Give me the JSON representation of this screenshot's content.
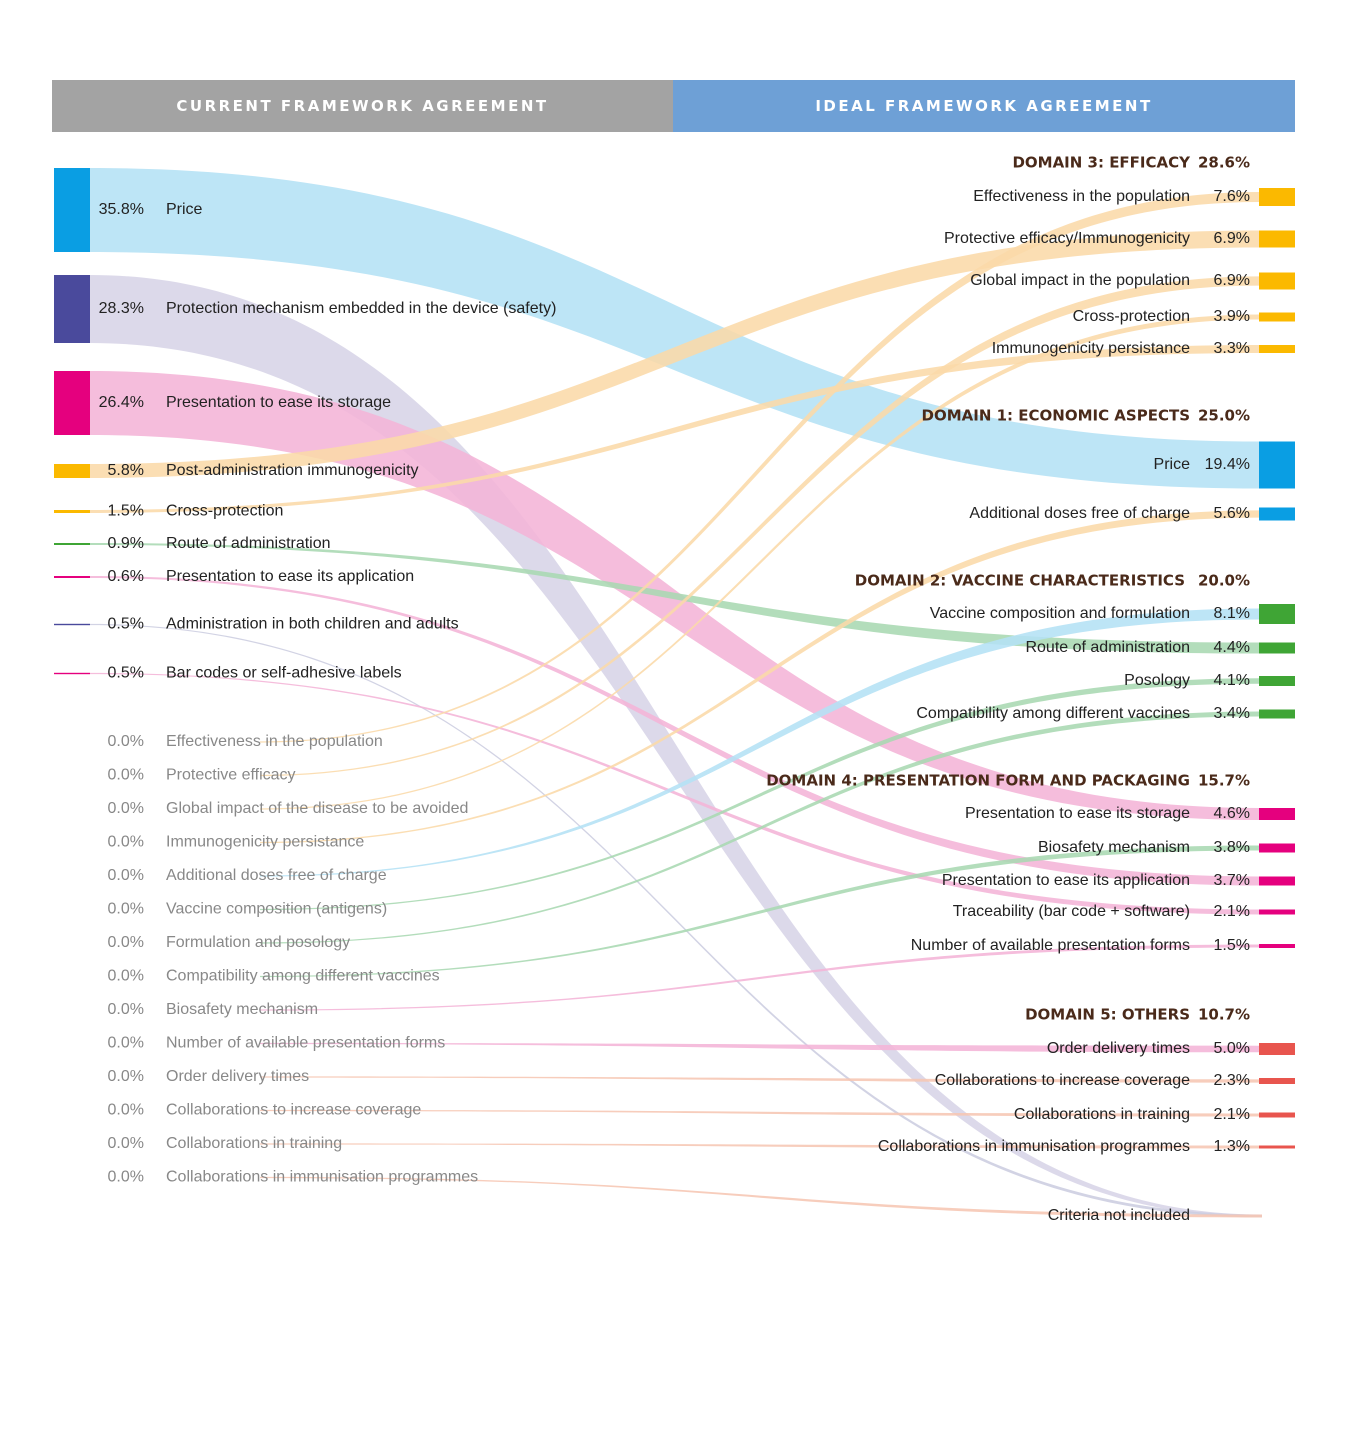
{
  "header": {
    "left": "CURRENT FRAMEWORK AGREEMENT",
    "right": "IDEAL FRAMEWORK AGREEMENT"
  },
  "colors": {
    "price": "#0a9ee3",
    "protection": "#4a4a9c",
    "storage": "#e5007e",
    "efficacy": "#fbb900",
    "characteristics": "#3fa535",
    "others": "#e8554e",
    "header_left": "#a3a3a3",
    "header_right": "#6ea0d6"
  },
  "chart_data": {
    "type": "sankey",
    "left_nodes": [
      {
        "id": "L-price",
        "pct": "35.8%",
        "label": "Price",
        "value": 35.8,
        "color": "#0a9ee3",
        "flow": "#b4e1f5"
      },
      {
        "id": "L-protection",
        "pct": "28.3%",
        "label": "Protection mechanism embedded in the device (safety)",
        "value": 28.3,
        "color": "#4a4a9c",
        "flow": "#d6d2e6"
      },
      {
        "id": "L-storage",
        "pct": "26.4%",
        "label": "Presentation to ease its storage",
        "value": 26.4,
        "color": "#e5007e",
        "flow": "#f4b4d7"
      },
      {
        "id": "L-postadmin",
        "pct": "5.8%",
        "label": "Post-administration immunogenicity",
        "value": 5.8,
        "color": "#fbb900",
        "flow": "#fad9a8"
      },
      {
        "id": "L-crossprot",
        "pct": "1.5%",
        "label": "Cross-protection",
        "value": 1.5,
        "color": "#fbb900",
        "flow": "#fad9a8"
      },
      {
        "id": "L-route",
        "pct": "0.9%",
        "label": "Route of administration",
        "value": 0.9,
        "color": "#3fa535",
        "flow": "#a8d8b2"
      },
      {
        "id": "L-application",
        "pct": "0.6%",
        "label": "Presentation to ease its application",
        "value": 0.6,
        "color": "#e5007e",
        "flow": "#f4b4d7"
      },
      {
        "id": "L-childadult",
        "pct": "0.5%",
        "label": "Administration in both children and adults",
        "value": 0.5,
        "color": "#4a4a9c",
        "flow": "#cccde0"
      },
      {
        "id": "L-barcodes",
        "pct": "0.5%",
        "label": "Bar codes or self-adhesive labels",
        "value": 0.5,
        "color": "#e5007e",
        "flow": "#f4b4d7"
      }
    ],
    "left_zero_nodes": [
      {
        "id": "Z-effectiveness",
        "pct": "0.0%",
        "label": "Effectiveness in the population",
        "flow": "#fad9a8"
      },
      {
        "id": "Z-protective",
        "pct": "0.0%",
        "label": "Protective efficacy",
        "flow": "#fad9a8"
      },
      {
        "id": "Z-global",
        "pct": "0.0%",
        "label": "Global impact of the disease to be avoided",
        "flow": "#fad9a8"
      },
      {
        "id": "Z-persistance",
        "pct": "0.0%",
        "label": "Immunogenicity persistance",
        "flow": "#fad9a8"
      },
      {
        "id": "Z-doses",
        "pct": "0.0%",
        "label": "Additional doses free of charge",
        "flow": "#b4e1f5"
      },
      {
        "id": "Z-composition",
        "pct": "0.0%",
        "label": "Vaccine composition (antigens)",
        "flow": "#a8d8b2"
      },
      {
        "id": "Z-formulation",
        "pct": "0.0%",
        "label": "Formulation and posology",
        "flow": "#a8d8b2"
      },
      {
        "id": "Z-compat",
        "pct": "0.0%",
        "label": "Compatibility among different vaccines",
        "flow": "#a8d8b2"
      },
      {
        "id": "Z-biosafety",
        "pct": "0.0%",
        "label": "Biosafety mechanism",
        "flow": "#f4b4d7"
      },
      {
        "id": "Z-numforms",
        "pct": "0.0%",
        "label": "Number of available presentation forms",
        "flow": "#f4b4d7"
      },
      {
        "id": "Z-delivery",
        "pct": "0.0%",
        "label": "Order delivery times",
        "flow": "#f6c6b3"
      },
      {
        "id": "Z-coverage",
        "pct": "0.0%",
        "label": "Collaborations to increase coverage",
        "flow": "#f6c6b3"
      },
      {
        "id": "Z-training",
        "pct": "0.0%",
        "label": "Collaborations in training",
        "flow": "#f6c6b3"
      },
      {
        "id": "Z-immprog",
        "pct": "0.0%",
        "label": "Collaborations in immunisation programmes",
        "flow": "#f6c6b3"
      }
    ],
    "domains": [
      {
        "id": "D3",
        "title": "DOMAIN 3: EFFICACY",
        "pct": "28.6%",
        "color": "#fbb900",
        "items": [
          {
            "id": "R-effectiveness",
            "label": "Effectiveness in the population",
            "pct": "7.6%",
            "value": 7.6
          },
          {
            "id": "R-protective",
            "label": "Protective efficacy/Immunogenicity",
            "pct": "6.9%",
            "value": 6.9
          },
          {
            "id": "R-global",
            "label": "Global impact in the population",
            "pct": "6.9%",
            "value": 6.9
          },
          {
            "id": "R-cross",
            "label": "Cross-protection",
            "pct": "3.9%",
            "value": 3.9
          },
          {
            "id": "R-persistance",
            "label": "Immunogenicity persistance",
            "pct": "3.3%",
            "value": 3.3
          }
        ]
      },
      {
        "id": "D1",
        "title": "DOMAIN 1: ECONOMIC ASPECTS",
        "pct": "25.0%",
        "color": "#0a9ee3",
        "items": [
          {
            "id": "R-price",
            "label": "Price",
            "pct": "19.4%",
            "value": 19.4
          },
          {
            "id": "R-doses",
            "label": "Additional doses free of charge",
            "pct": "5.6%",
            "value": 5.6
          }
        ]
      },
      {
        "id": "D2",
        "title": "DOMAIN 2: VACCINE CHARACTERISTICS",
        "pct": "20.0%",
        "color": "#3fa535",
        "items": [
          {
            "id": "R-composition",
            "label": "Vaccine composition and formulation",
            "pct": "8.1%",
            "value": 8.1
          },
          {
            "id": "R-route",
            "label": "Route of administration",
            "pct": "4.4%",
            "value": 4.4
          },
          {
            "id": "R-posology",
            "label": "Posology",
            "pct": "4.1%",
            "value": 4.1
          },
          {
            "id": "R-compat",
            "label": "Compatibility among different vaccines",
            "pct": "3.4%",
            "value": 3.4
          }
        ]
      },
      {
        "id": "D4",
        "title": "DOMAIN 4: PRESENTATION FORM AND PACKAGING",
        "pct": "15.7%",
        "color": "#e5007e",
        "items": [
          {
            "id": "R-storage",
            "label": "Presentation to ease its storage",
            "pct": "4.6%",
            "value": 4.6
          },
          {
            "id": "R-biosafety",
            "label": "Biosafety mechanism",
            "pct": "3.8%",
            "value": 3.8
          },
          {
            "id": "R-application",
            "label": "Presentation to ease its application",
            "pct": "3.7%",
            "value": 3.7
          },
          {
            "id": "R-traceability",
            "label": "Traceability (bar code + software)",
            "pct": "2.1%",
            "value": 2.1
          },
          {
            "id": "R-numforms",
            "label": "Number of available presentation forms",
            "pct": "1.5%",
            "value": 1.5
          }
        ]
      },
      {
        "id": "D5",
        "title": "DOMAIN 5: OTHERS",
        "pct": "10.7%",
        "color": "#e8554e",
        "items": [
          {
            "id": "R-delivery",
            "label": "Order delivery times",
            "pct": "5.0%",
            "value": 5.0
          },
          {
            "id": "R-coverage",
            "label": "Collaborations to increase coverage",
            "pct": "2.3%",
            "value": 2.3
          },
          {
            "id": "R-training",
            "label": "Collaborations in training",
            "pct": "2.1%",
            "value": 2.1
          },
          {
            "id": "R-immprog",
            "label": "Collaborations in immunisation programmes",
            "pct": "1.3%",
            "value": 1.3
          }
        ]
      }
    ],
    "not_included_label": "Criteria not included",
    "flows": [
      {
        "from": "L-price",
        "to": "R-price"
      },
      {
        "from": "L-protection",
        "to": "R-notincluded"
      },
      {
        "from": "L-storage",
        "to": "R-storage"
      },
      {
        "from": "L-postadmin",
        "to": "R-protective"
      },
      {
        "from": "L-crossprot",
        "to": "R-persistance"
      },
      {
        "from": "L-route",
        "to": "R-route"
      },
      {
        "from": "L-application",
        "to": "R-application"
      },
      {
        "from": "L-childadult",
        "to": "R-notincluded"
      },
      {
        "from": "L-barcodes",
        "to": "R-traceability"
      },
      {
        "from": "Z-effectiveness",
        "to": "R-effectiveness"
      },
      {
        "from": "Z-protective",
        "to": "R-global"
      },
      {
        "from": "Z-global",
        "to": "R-cross"
      },
      {
        "from": "Z-persistance",
        "to": "R-doses"
      },
      {
        "from": "Z-doses",
        "to": "R-composition"
      },
      {
        "from": "Z-composition",
        "to": "R-posology"
      },
      {
        "from": "Z-formulation",
        "to": "R-compat"
      },
      {
        "from": "Z-compat",
        "to": "R-biosafety"
      },
      {
        "from": "Z-biosafety",
        "to": "R-numforms"
      },
      {
        "from": "Z-numforms",
        "to": "R-delivery"
      },
      {
        "from": "Z-delivery",
        "to": "R-coverage"
      },
      {
        "from": "Z-coverage",
        "to": "R-training"
      },
      {
        "from": "Z-training",
        "to": "R-immprog"
      },
      {
        "from": "Z-immprog",
        "to": "R-notincluded"
      }
    ]
  }
}
